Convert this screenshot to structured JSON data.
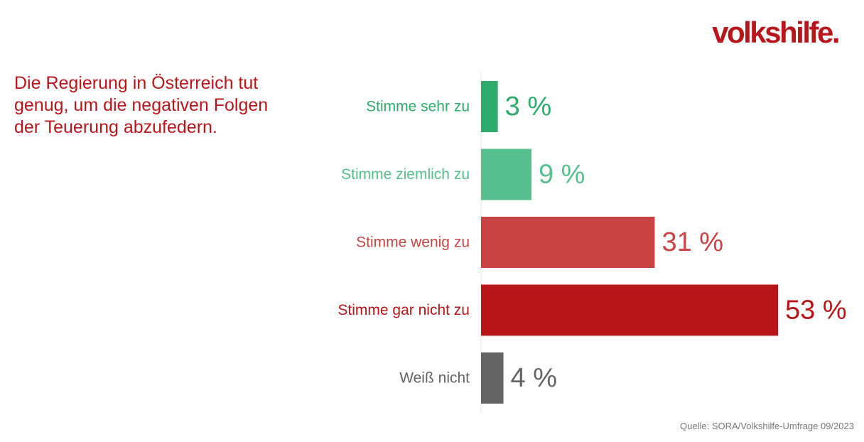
{
  "logo": {
    "text": "volkshilfe."
  },
  "question": "Die Regierung in Österreich tut genug, um die negativen Folgen der Teuerung abzufedern.",
  "source": "Quelle: SORA/Volkshilfe-Umfrage 09/2023",
  "colors": {
    "brand": "#b8161b",
    "stimme_sehr_zu": "#2eab6b",
    "stimme_ziemlich_zu": "#55bf8e",
    "stimme_wenig_zu": "#c84444",
    "stimme_gar_nicht_zu": "#b81519",
    "weiss_nicht": "#646464"
  },
  "chart_data": {
    "type": "bar",
    "orientation": "horizontal",
    "title": "Die Regierung in Österreich tut genug, um die negativen Folgen der Teuerung abzufedern.",
    "categories": [
      "Stimme sehr zu",
      "Stimme ziemlich zu",
      "Stimme wenig zu",
      "Stimme gar nicht zu",
      "Weiß nicht"
    ],
    "values": [
      3,
      9,
      31,
      53,
      4
    ],
    "value_labels": [
      "3 %",
      "9 %",
      "31 %",
      "53 %",
      "4 %"
    ],
    "bar_colors": [
      "#2eab6b",
      "#55bf8e",
      "#c84444",
      "#b81519",
      "#646464"
    ],
    "unit": "%",
    "xlim": [
      0,
      53
    ],
    "grid": false,
    "legend": "none"
  }
}
